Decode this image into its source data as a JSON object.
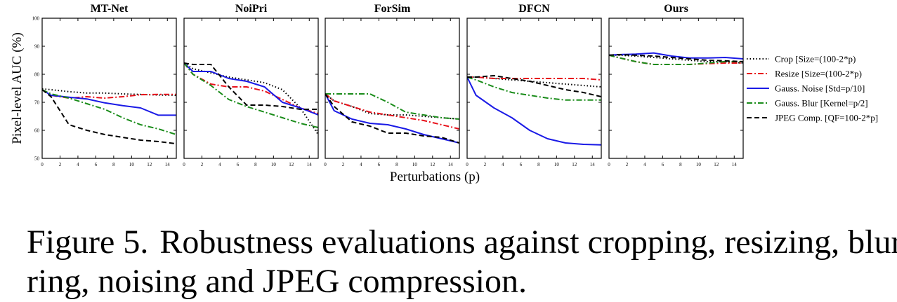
{
  "chart_data": {
    "type": "line",
    "ylabel": "Pixel-level AUC (%)",
    "xlabel": "Perturbations (p)",
    "ylim": [
      50,
      100
    ],
    "xlim": [
      0,
      15
    ],
    "yticks": [
      50,
      60,
      70,
      80,
      90,
      100
    ],
    "xticks": [
      0,
      2,
      4,
      6,
      8,
      10,
      12,
      14
    ],
    "series_meta": [
      {
        "name": "Crop [Size=(100-2*p)",
        "color": "#000000",
        "dash": "1.5,3",
        "width": 2
      },
      {
        "name": "Resize [Size=(100-2*p)",
        "color": "#e8101a",
        "dash": "8,3,2,3",
        "width": 2
      },
      {
        "name": "Gauss. Noise [Std=p/10]",
        "color": "#1a1ae6",
        "dash": "",
        "width": 2
      },
      {
        "name": "Gauss. Blur [Kernel=p/2]",
        "color": "#1a8c1a",
        "dash": "8,3,2,3",
        "width": 2
      },
      {
        "name": "JPEG Comp. [QF=100-2*p]",
        "color": "#000000",
        "dash": "7,4",
        "width": 2
      }
    ],
    "panels": [
      {
        "title": "MT-Net",
        "series": [
          {
            "x": [
              0,
              1,
              3,
              5,
              7,
              9,
              11,
              13,
              15
            ],
            "y": [
              74.8,
              74.5,
              73.8,
              73.3,
              73.3,
              73.0,
              72.8,
              72.6,
              72.5
            ]
          },
          {
            "x": [
              0,
              1,
              3,
              5,
              7,
              9,
              11,
              13,
              15
            ],
            "y": [
              74.5,
              72.5,
              71.5,
              72.0,
              71.5,
              72.0,
              72.7,
              72.8,
              72.8
            ]
          },
          {
            "x": [
              0,
              1,
              3,
              5,
              7,
              9,
              11,
              13,
              15
            ],
            "y": [
              74.5,
              72.5,
              71.8,
              71.2,
              69.8,
              68.8,
              68.0,
              65.4,
              65.4
            ]
          },
          {
            "x": [
              0,
              1,
              3,
              5,
              7,
              9,
              11,
              13,
              15
            ],
            "y": [
              74.5,
              73.0,
              71.5,
              69.5,
              67.5,
              64.5,
              62.0,
              60.5,
              58.5
            ]
          },
          {
            "x": [
              0,
              1,
              3,
              5,
              7,
              9,
              11,
              13,
              15
            ],
            "y": [
              74.5,
              72.0,
              62.0,
              60.0,
              58.5,
              57.5,
              56.5,
              56.0,
              55.2
            ]
          }
        ]
      },
      {
        "title": "NoiPri",
        "series": [
          {
            "x": [
              0,
              1,
              3,
              5,
              7,
              9,
              11,
              13,
              15
            ],
            "y": [
              84.0,
              82.0,
              80.5,
              79.0,
              78.0,
              77.0,
              74.5,
              68.0,
              58.5
            ]
          },
          {
            "x": [
              0,
              1,
              3,
              5,
              7,
              9,
              11,
              13,
              15
            ],
            "y": [
              84.0,
              80.0,
              76.5,
              75.5,
              75.5,
              74.0,
              71.0,
              68.0,
              66.0
            ]
          },
          {
            "x": [
              0,
              1,
              3,
              5,
              7,
              9,
              11,
              13,
              15
            ],
            "y": [
              84.0,
              81.0,
              81.0,
              78.5,
              77.5,
              75.5,
              70.0,
              68.0,
              65.5
            ]
          },
          {
            "x": [
              0,
              1,
              3,
              5,
              7,
              9,
              11,
              13,
              15
            ],
            "y": [
              84.0,
              80.0,
              76.0,
              71.0,
              68.5,
              66.5,
              64.5,
              62.5,
              61.0
            ]
          },
          {
            "x": [
              0,
              1,
              3,
              5,
              7,
              9,
              11,
              13,
              15
            ],
            "y": [
              84.0,
              83.5,
              83.5,
              75.5,
              69.0,
              69.0,
              68.5,
              67.5,
              67.5
            ]
          }
        ]
      },
      {
        "title": "ForSim",
        "series": [
          {
            "x": [
              0,
              1,
              3,
              5,
              7,
              9,
              11,
              13,
              15
            ],
            "y": [
              73.0,
              70.5,
              68.5,
              66.0,
              65.5,
              65.5,
              65.0,
              64.5,
              64.0
            ]
          },
          {
            "x": [
              0,
              1,
              3,
              5,
              7,
              9,
              11,
              13,
              15
            ],
            "y": [
              73.0,
              70.5,
              68.5,
              66.5,
              65.5,
              64.5,
              63.5,
              62.0,
              60.5
            ]
          },
          {
            "x": [
              0,
              1,
              3,
              5,
              7,
              9,
              11,
              13,
              15
            ],
            "y": [
              73.0,
              67.0,
              64.0,
              62.5,
              62.0,
              60.5,
              58.5,
              57.0,
              55.5
            ]
          },
          {
            "x": [
              0,
              1,
              3,
              5,
              7,
              9,
              11,
              13,
              15
            ],
            "y": [
              73.0,
              73.0,
              73.0,
              73.0,
              70.0,
              66.5,
              65.5,
              64.5,
              64.0
            ]
          },
          {
            "x": [
              0,
              1,
              3,
              5,
              7,
              9,
              11,
              13,
              15
            ],
            "y": [
              73.0,
              68.5,
              63.0,
              61.5,
              59.0,
              59.0,
              58.0,
              57.5,
              55.5
            ]
          }
        ]
      },
      {
        "title": "DFCN",
        "series": [
          {
            "x": [
              0,
              1,
              3,
              5,
              7,
              9,
              11,
              13,
              15
            ],
            "y": [
              79.0,
              79.0,
              78.5,
              78.0,
              77.5,
              77.0,
              76.5,
              76.0,
              75.5
            ]
          },
          {
            "x": [
              0,
              1,
              3,
              5,
              7,
              9,
              11,
              13,
              15
            ],
            "y": [
              79.0,
              79.0,
              78.5,
              78.5,
              78.5,
              78.5,
              78.5,
              78.5,
              78.0
            ]
          },
          {
            "x": [
              0,
              1,
              3,
              5,
              7,
              9,
              11,
              13,
              15
            ],
            "y": [
              79.0,
              72.5,
              68.0,
              64.5,
              60.0,
              57.0,
              55.5,
              55.0,
              54.8
            ]
          },
          {
            "x": [
              0,
              1,
              3,
              5,
              7,
              9,
              11,
              13,
              15
            ],
            "y": [
              79.0,
              78.0,
              75.5,
              73.5,
              72.5,
              71.5,
              70.8,
              70.8,
              70.8
            ]
          },
          {
            "x": [
              0,
              1,
              3,
              5,
              7,
              9,
              11,
              13,
              15
            ],
            "y": [
              79.0,
              79.0,
              79.5,
              78.5,
              77.5,
              76.0,
              74.5,
              73.5,
              72.0
            ]
          }
        ]
      },
      {
        "title": "Ours",
        "series": [
          {
            "x": [
              0,
              1,
              3,
              5,
              7,
              9,
              11,
              13,
              15
            ],
            "y": [
              86.8,
              86.8,
              86.5,
              86.0,
              85.5,
              85.0,
              84.5,
              84.5,
              84.0
            ]
          },
          {
            "x": [
              0,
              1,
              3,
              5,
              7,
              9,
              11,
              13,
              15
            ],
            "y": [
              86.8,
              86.0,
              84.5,
              83.5,
              83.5,
              83.5,
              83.8,
              84.0,
              84.0
            ]
          },
          {
            "x": [
              0,
              1,
              3,
              5,
              7,
              9,
              11,
              13,
              15
            ],
            "y": [
              86.8,
              87.0,
              87.2,
              87.6,
              86.5,
              85.8,
              85.8,
              86.0,
              85.5
            ]
          },
          {
            "x": [
              0,
              1,
              3,
              5,
              7,
              9,
              11,
              13,
              15
            ],
            "y": [
              86.8,
              86.0,
              84.5,
              83.5,
              83.5,
              83.5,
              84.0,
              84.5,
              84.5
            ]
          },
          {
            "x": [
              0,
              1,
              3,
              5,
              7,
              9,
              11,
              13,
              15
            ],
            "y": [
              86.8,
              87.0,
              86.8,
              86.5,
              86.0,
              85.5,
              85.0,
              84.8,
              84.5
            ]
          }
        ]
      }
    ]
  },
  "caption": {
    "label": "Figure 5.",
    "line1": "Robustness evaluations against cropping, resizing, blur-",
    "line2": "ring, noising and JPEG compression."
  }
}
